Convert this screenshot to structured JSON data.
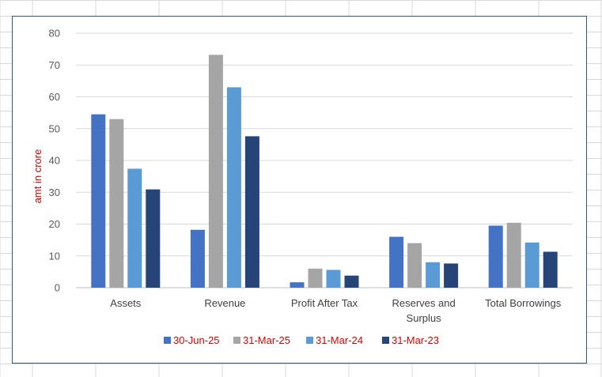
{
  "spreadsheet": {
    "gridline_color": "#d9d9d9"
  },
  "chart_data": {
    "type": "bar",
    "title": "",
    "xlabel": "",
    "ylabel": "amt in crore",
    "ylim": [
      0,
      80
    ],
    "yticks": [
      0,
      10,
      20,
      30,
      40,
      50,
      60,
      70,
      80
    ],
    "grid": true,
    "legend_position": "bottom",
    "categories": [
      "Assets",
      "Revenue",
      "Profit After Tax",
      "Reserves and Surplus",
      "Total Borrowings"
    ],
    "series": [
      {
        "name": "30-Jun-25",
        "color": "#4472c4",
        "values": [
          54.5,
          18.2,
          1.7,
          16.0,
          19.5
        ]
      },
      {
        "name": "31-Mar-25",
        "color": "#a5a5a5",
        "values": [
          53.0,
          73.2,
          6.0,
          14.0,
          20.4
        ]
      },
      {
        "name": "31-Mar-24",
        "color": "#5b9bd5",
        "values": [
          37.4,
          63.0,
          5.6,
          8.0,
          14.2
        ]
      },
      {
        "name": "31-Mar-23",
        "color": "#264478",
        "values": [
          30.9,
          47.6,
          3.8,
          7.6,
          11.3
        ]
      }
    ]
  }
}
